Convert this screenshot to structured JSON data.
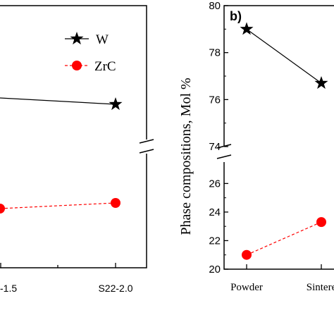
{
  "chart_data": [
    {
      "type": "line",
      "panel_label": "",
      "categories": [
        "-1.5",
        "S22-2.0"
      ],
      "x_tick_labels": [
        "-1.5",
        "S22-2.0"
      ],
      "y_axis_broken": true,
      "legend_placement": "top-right",
      "series": [
        {
          "name": "W",
          "color": "#000000",
          "marker": "star-icon",
          "line_style": "solid",
          "values": [
            null,
            null
          ]
        },
        {
          "name": "ZrC",
          "color": "#ff0000",
          "marker": "circle-icon",
          "line_style": "dashed",
          "values": [
            null,
            null
          ]
        }
      ]
    },
    {
      "type": "line",
      "panel_label": "b)",
      "categories": [
        "Powder",
        "Sintere"
      ],
      "x_tick_labels": [
        "Powder",
        "Sintere"
      ],
      "ylabel": "Phase compositions, Mol %",
      "y_axis_broken": true,
      "y_upper_range": [
        74,
        80
      ],
      "y_lower_range": [
        20,
        27.5
      ],
      "y_upper_ticks": [
        "80",
        "78",
        "76",
        "74"
      ],
      "y_lower_ticks": [
        "26",
        "24",
        "22",
        "20"
      ],
      "series": [
        {
          "name": "W",
          "color": "#000000",
          "marker": "star-icon",
          "line_style": "solid",
          "values": [
            79.0,
            76.7
          ]
        },
        {
          "name": "ZrC",
          "color": "#ff0000",
          "marker": "circle-icon",
          "line_style": "dashed",
          "values": [
            21.0,
            23.3
          ]
        }
      ]
    }
  ]
}
